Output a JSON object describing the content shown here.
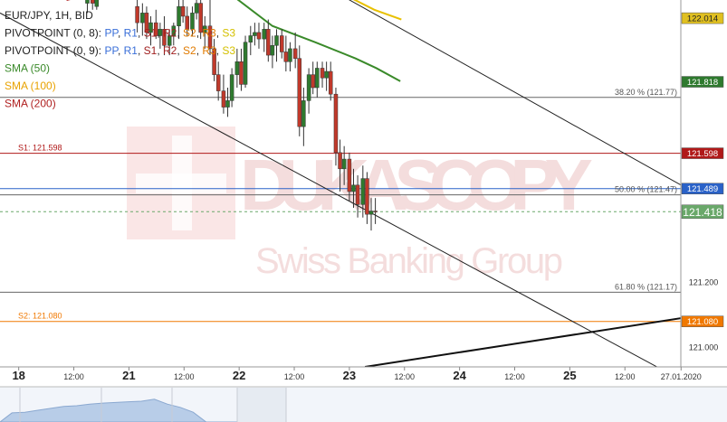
{
  "chart_data": {
    "type": "candlestick",
    "legend": [
      {
        "text": "EUR/JPY, 1H, BID",
        "color": "#222222"
      },
      {
        "parts": [
          {
            "t": "PIVOTPOINT (0, 8): ",
            "c": "#222222"
          },
          {
            "t": "PP",
            "c": "#3a6fd8"
          },
          {
            "t": ", ",
            "c": "#222222"
          },
          {
            "t": "R1",
            "c": "#3a6fd8"
          },
          {
            "t": ", ",
            "c": "#222222"
          },
          {
            "t": "S1",
            "c": "#a02020"
          },
          {
            "t": ", ",
            "c": "#222222"
          },
          {
            "t": "R2",
            "c": "#a02020"
          },
          {
            "t": ", ",
            "c": "#222222"
          },
          {
            "t": "S2",
            "c": "#e07a00"
          },
          {
            "t": ", ",
            "c": "#222222"
          },
          {
            "t": "R3",
            "c": "#e07a00"
          },
          {
            "t": ", ",
            "c": "#222222"
          },
          {
            "t": "S3",
            "c": "#d4c000"
          }
        ]
      },
      {
        "parts": [
          {
            "t": "PIVOTPOINT (0, 9): ",
            "c": "#222222"
          },
          {
            "t": "PP",
            "c": "#3a6fd8"
          },
          {
            "t": ", ",
            "c": "#222222"
          },
          {
            "t": "R1",
            "c": "#3a6fd8"
          },
          {
            "t": ", ",
            "c": "#222222"
          },
          {
            "t": "S1",
            "c": "#a02020"
          },
          {
            "t": ", ",
            "c": "#222222"
          },
          {
            "t": "R2",
            "c": "#a02020"
          },
          {
            "t": ", ",
            "c": "#222222"
          },
          {
            "t": "S2",
            "c": "#e07a00"
          },
          {
            "t": ", ",
            "c": "#222222"
          },
          {
            "t": "R3",
            "c": "#e07a00"
          },
          {
            "t": ", ",
            "c": "#222222"
          },
          {
            "t": "S3",
            "c": "#d4c000"
          }
        ]
      },
      {
        "text": "SMA (50)",
        "color": "#3a8a2a"
      },
      {
        "text": "SMA (100)",
        "color": "#e8a200"
      },
      {
        "text": "SMA (200)",
        "color": "#b02020"
      }
    ],
    "watermark": {
      "brand": "DUKASCOPY",
      "tagline": "Swiss Banking Group"
    },
    "ylim": [
      120.94,
      122.07
    ],
    "xlim": [
      0,
      8.44
    ],
    "x_tick_labels": [
      {
        "x": 0.18,
        "label": "18",
        "day": true
      },
      {
        "x": 0.71,
        "label": "12:00",
        "day": false
      },
      {
        "x": 1.24,
        "label": "21",
        "day": true
      },
      {
        "x": 1.77,
        "label": "12:00",
        "day": false
      },
      {
        "x": 2.3,
        "label": "22",
        "day": true
      },
      {
        "x": 2.83,
        "label": "12:00",
        "day": false
      },
      {
        "x": 3.36,
        "label": "23",
        "day": true
      },
      {
        "x": 3.89,
        "label": "12:00",
        "day": false
      },
      {
        "x": 4.42,
        "label": "24",
        "day": true
      },
      {
        "x": 4.95,
        "label": "12:00",
        "day": false
      },
      {
        "x": 5.48,
        "label": "25",
        "day": true
      },
      {
        "x": 6.01,
        "label": "12:00",
        "day": false
      },
      {
        "x": 6.55,
        "label": "27.01.2020",
        "day": false
      }
    ],
    "y_tick_labels": [
      121.2,
      121.0
    ],
    "price_tags": [
      {
        "value": 122.014,
        "label": "122.014",
        "bg": "#e0c020",
        "fg": "#222222"
      },
      {
        "value": 121.818,
        "label": "121.818",
        "bg": "#2e7a2e",
        "fg": "#ffffff"
      },
      {
        "value": 121.598,
        "label": "121.598",
        "bg": "#b01818",
        "fg": "#ffffff"
      },
      {
        "value": 121.489,
        "label": "121.489",
        "bg": "#2a62c8",
        "fg": "#ffffff"
      },
      {
        "value": 121.418,
        "label": "121.418",
        "bg": "#6aa86a",
        "fg": "#ffffff",
        "big": true
      },
      {
        "value": 121.08,
        "label": "121.080",
        "bg": "#f07800",
        "fg": "#ffffff"
      }
    ],
    "horizontal_lines": [
      {
        "value": 121.77,
        "color": "#666666",
        "right_label": "38.20 % (121.77)"
      },
      {
        "value": 121.598,
        "color": "#b01818",
        "left_label": "S1: 121.598"
      },
      {
        "value": 121.489,
        "color": "#2a62c8"
      },
      {
        "value": 121.47,
        "color": "#666666",
        "right_label": "50.00 % (121.47)"
      },
      {
        "value": 121.418,
        "color": "#6aa86a",
        "dashed": true
      },
      {
        "value": 121.17,
        "color": "#666666",
        "right_label": "61.80 % (121.17)"
      },
      {
        "value": 121.08,
        "color": "#f07800",
        "left_label": "S2: 121.080"
      }
    ],
    "trend_lines": [
      {
        "x1": 3.25,
        "y1": 122.09,
        "x2": 6.55,
        "y2": 121.5,
        "color": "#222222",
        "width": 1
      },
      {
        "x1": 0.0,
        "y1": 122.03,
        "x2": 6.55,
        "y2": 120.9,
        "color": "#222222",
        "width": 1
      },
      {
        "x1": 3.51,
        "y1": 120.94,
        "x2": 6.55,
        "y2": 121.09,
        "color": "#111111",
        "width": 2
      }
    ],
    "sma50": [
      [
        2.21,
        122.09
      ],
      [
        2.62,
        121.99
      ],
      [
        3.03,
        121.94
      ],
      [
        3.42,
        121.89
      ],
      [
        3.62,
        121.86
      ],
      [
        3.85,
        121.82
      ]
    ],
    "sma100": [
      [
        3.29,
        122.09
      ],
      [
        3.6,
        122.04
      ],
      [
        3.86,
        122.01
      ]
    ],
    "sma200": [
      [
        0.64,
        122.07
      ],
      [
        1.03,
        122.1
      ]
    ],
    "candles": [
      [
        0.84,
        122.06,
        122.1,
        122.03,
        122.08
      ],
      [
        0.89,
        122.08,
        122.1,
        122.04,
        122.06
      ],
      [
        0.93,
        122.05,
        122.09,
        122.04,
        122.08
      ],
      [
        1.32,
        122.05,
        122.08,
        121.97,
        122.0
      ],
      [
        1.37,
        122.0,
        122.06,
        121.96,
        122.03
      ],
      [
        1.41,
        122.03,
        122.05,
        121.95,
        121.97
      ],
      [
        1.45,
        121.97,
        122.02,
        121.93,
        122.0
      ],
      [
        1.5,
        122.0,
        122.04,
        121.95,
        121.96
      ],
      [
        1.54,
        121.96,
        122.0,
        121.92,
        121.98
      ],
      [
        1.58,
        121.98,
        122.02,
        121.9,
        121.93
      ],
      [
        1.63,
        121.93,
        121.98,
        121.9,
        121.96
      ],
      [
        1.67,
        121.96,
        122.0,
        121.93,
        121.99
      ],
      [
        1.72,
        121.99,
        122.07,
        121.95,
        122.05
      ],
      [
        1.76,
        122.05,
        122.09,
        122.0,
        122.02
      ],
      [
        1.8,
        122.02,
        122.05,
        121.96,
        121.98
      ],
      [
        1.85,
        121.98,
        122.05,
        121.96,
        122.03
      ],
      [
        1.89,
        122.03,
        122.08,
        122.01,
        122.06
      ],
      [
        1.93,
        122.06,
        122.09,
        121.95,
        121.97
      ],
      [
        1.97,
        121.97,
        122.02,
        121.92,
        121.99
      ],
      [
        2.02,
        121.99,
        122.09,
        121.9,
        121.92
      ],
      [
        2.06,
        121.92,
        121.95,
        121.82,
        121.84
      ],
      [
        2.1,
        121.84,
        121.88,
        121.76,
        121.79
      ],
      [
        2.15,
        121.79,
        121.84,
        121.72,
        121.74
      ],
      [
        2.19,
        121.74,
        121.8,
        121.71,
        121.76
      ],
      [
        2.23,
        121.76,
        121.86,
        121.74,
        121.84
      ],
      [
        2.28,
        121.84,
        121.92,
        121.8,
        121.88
      ],
      [
        2.32,
        121.88,
        121.92,
        121.79,
        121.81
      ],
      [
        2.36,
        121.81,
        121.96,
        121.8,
        121.94
      ],
      [
        2.41,
        121.94,
        121.99,
        121.9,
        121.96
      ],
      [
        2.45,
        121.96,
        122.0,
        121.93,
        121.97
      ],
      [
        2.49,
        121.97,
        122.0,
        121.92,
        121.95
      ],
      [
        2.54,
        121.95,
        122.0,
        121.91,
        121.98
      ],
      [
        2.58,
        121.98,
        122.01,
        121.88,
        121.9
      ],
      [
        2.62,
        121.9,
        121.96,
        121.86,
        121.93
      ],
      [
        2.66,
        121.93,
        121.98,
        121.88,
        121.96
      ],
      [
        2.71,
        121.96,
        121.98,
        121.89,
        121.91
      ],
      [
        2.75,
        121.91,
        121.96,
        121.85,
        121.88
      ],
      [
        2.79,
        121.88,
        121.94,
        121.85,
        121.92
      ],
      [
        2.84,
        121.92,
        121.97,
        121.86,
        121.89
      ],
      [
        2.88,
        121.89,
        121.93,
        121.65,
        121.68
      ],
      [
        2.92,
        121.68,
        121.8,
        121.62,
        121.76
      ],
      [
        2.97,
        121.76,
        121.86,
        121.72,
        121.84
      ],
      [
        3.01,
        121.84,
        121.88,
        121.78,
        121.8
      ],
      [
        3.05,
        121.8,
        121.88,
        121.77,
        121.86
      ],
      [
        3.1,
        121.86,
        121.88,
        121.8,
        121.83
      ],
      [
        3.14,
        121.83,
        121.88,
        121.79,
        121.85
      ],
      [
        3.18,
        121.85,
        121.88,
        121.76,
        121.78
      ],
      [
        3.23,
        121.78,
        121.8,
        121.56,
        121.6
      ],
      [
        3.27,
        121.6,
        121.64,
        121.48,
        121.55
      ],
      [
        3.31,
        121.55,
        121.62,
        121.5,
        121.58
      ],
      [
        3.36,
        121.58,
        121.6,
        121.45,
        121.48
      ],
      [
        3.4,
        121.48,
        121.55,
        121.43,
        121.5
      ],
      [
        3.44,
        121.5,
        121.53,
        121.4,
        121.44
      ],
      [
        3.49,
        121.44,
        121.56,
        121.4,
        121.52
      ],
      [
        3.53,
        121.52,
        121.54,
        121.38,
        121.41
      ],
      [
        3.57,
        121.41,
        121.46,
        121.36,
        121.42
      ],
      [
        3.61,
        121.42,
        121.46,
        121.38,
        121.418
      ]
    ],
    "volume_bars": [
      {
        "x": 0.12,
        "h": 0.28
      },
      {
        "x": 0.25,
        "h": 0.3
      },
      {
        "x": 0.38,
        "h": 0.36
      },
      {
        "x": 0.51,
        "h": 0.42
      },
      {
        "x": 0.64,
        "h": 0.48
      },
      {
        "x": 0.77,
        "h": 0.5
      },
      {
        "x": 0.9,
        "h": 0.55
      },
      {
        "x": 1.03,
        "h": 0.58
      },
      {
        "x": 1.16,
        "h": 0.6
      },
      {
        "x": 1.29,
        "h": 0.62
      },
      {
        "x": 1.42,
        "h": 0.64
      },
      {
        "x": 1.55,
        "h": 0.7
      },
      {
        "x": 1.68,
        "h": 0.55
      },
      {
        "x": 1.81,
        "h": 0.45
      },
      {
        "x": 1.94,
        "h": 0.3
      },
      {
        "x": 2.07,
        "h": 0.0
      },
      {
        "x": 2.2,
        "h": 0.0
      },
      {
        "x": 2.33,
        "h": 0.0
      }
    ]
  }
}
